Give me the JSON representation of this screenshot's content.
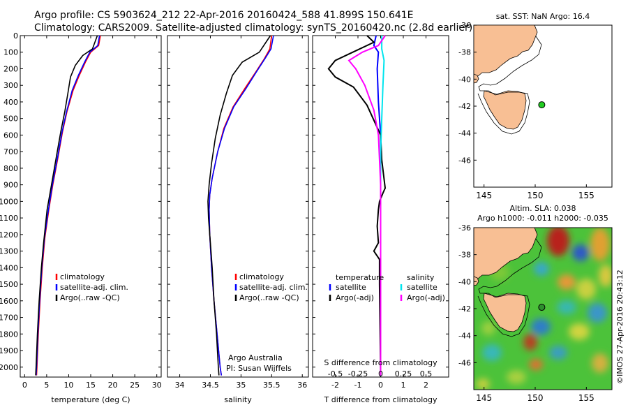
{
  "header": {
    "line1": "Argo profile: CS 5903624_212 22-Apr-2016 20160424_588 41.899S 150.641E",
    "line2": "Climatology: CARS2009. Satellite-adjusted climatology: synTS_20160420.nc (2.8d earlier)"
  },
  "colors": {
    "clim": "#ff0000",
    "sat": "#0000ff",
    "argo": "#000000",
    "sal_sat": "#00e5ee",
    "sal_argo": "#ff00ff",
    "land": "#f8bf94",
    "dot": "#22cc22"
  },
  "chart_data": [
    {
      "id": "temperature",
      "type": "line",
      "xlabel": "temperature (deg C)",
      "xlim": [
        -1,
        31
      ],
      "xticks": [
        0,
        5,
        10,
        15,
        20,
        25,
        30
      ],
      "ylim": [
        2060,
        0
      ],
      "yticks": [
        0,
        100,
        200,
        300,
        400,
        500,
        600,
        700,
        800,
        900,
        1000,
        1100,
        1200,
        1300,
        1400,
        1500,
        1600,
        1700,
        1800,
        1900,
        2000
      ],
      "legend": [
        "climatology",
        "satellite-adj. clim.",
        "Argo(..raw -QC)"
      ],
      "series": [
        {
          "name": "climatology",
          "color": "#ff0000",
          "points": [
            [
              17.2,
              0
            ],
            [
              16.8,
              60
            ],
            [
              15,
              100
            ],
            [
              13.8,
              160
            ],
            [
              12.4,
              240
            ],
            [
              11,
              330
            ],
            [
              9.6,
              460
            ],
            [
              8.6,
              580
            ],
            [
              7.6,
              730
            ],
            [
              6.4,
              900
            ],
            [
              5.5,
              1050
            ],
            [
              4.6,
              1220
            ],
            [
              4,
              1400
            ],
            [
              3.5,
              1600
            ],
            [
              3.1,
              1800
            ],
            [
              2.8,
              2000
            ],
            [
              2.7,
              2050
            ]
          ]
        },
        {
          "name": "satellite-adj. clim.",
          "color": "#0000ff",
          "points": [
            [
              17,
              0
            ],
            [
              16.6,
              60
            ],
            [
              14.8,
              100
            ],
            [
              13.6,
              160
            ],
            [
              12.2,
              240
            ],
            [
              10.8,
              330
            ],
            [
              9.5,
              460
            ],
            [
              8.5,
              580
            ],
            [
              7.5,
              730
            ],
            [
              6.3,
              900
            ],
            [
              5.4,
              1050
            ],
            [
              4.5,
              1220
            ],
            [
              3.9,
              1400
            ],
            [
              3.4,
              1600
            ],
            [
              3,
              1800
            ],
            [
              2.7,
              2000
            ],
            [
              2.6,
              2050
            ]
          ]
        },
        {
          "name": "Argo(..raw -QC)",
          "color": "#000000",
          "points": [
            [
              16.5,
              0
            ],
            [
              15.4,
              80
            ],
            [
              13.2,
              120
            ],
            [
              11.5,
              180
            ],
            [
              10.4,
              250
            ],
            [
              9.8,
              350
            ],
            [
              9.1,
              460
            ],
            [
              8.2,
              580
            ],
            [
              7.2,
              730
            ],
            [
              6.1,
              900
            ],
            [
              5.1,
              1050
            ],
            [
              4.3,
              1250
            ],
            [
              3.8,
              1400
            ],
            [
              3.3,
              1600
            ],
            [
              2.9,
              1800
            ],
            [
              2.6,
              2000
            ],
            [
              2.5,
              2050
            ]
          ]
        }
      ]
    },
    {
      "id": "salinity",
      "type": "line",
      "xlabel": "salinity",
      "xlim": [
        33.8,
        36.1
      ],
      "xticks": [
        34,
        34.5,
        35,
        35.5,
        36
      ],
      "ylim": [
        2060,
        0
      ],
      "legend": [
        "climatology",
        "satellite-adj. clim.",
        "Argo(..raw -QC)"
      ],
      "annotation": [
        "Argo Australia",
        "PI: Susan Wijffels"
      ],
      "series": [
        {
          "name": "climatology",
          "color": "#ff0000",
          "points": [
            [
              35.5,
              0
            ],
            [
              35.47,
              80
            ],
            [
              35.38,
              140
            ],
            [
              35.24,
              220
            ],
            [
              35.06,
              320
            ],
            [
              34.87,
              430
            ],
            [
              34.72,
              560
            ],
            [
              34.62,
              700
            ],
            [
              34.53,
              860
            ],
            [
              34.49,
              960
            ],
            [
              34.48,
              1050
            ],
            [
              34.49,
              1200
            ],
            [
              34.52,
              1400
            ],
            [
              34.56,
              1600
            ],
            [
              34.61,
              1800
            ],
            [
              34.66,
              2000
            ],
            [
              34.68,
              2050
            ]
          ]
        },
        {
          "name": "satellite-adj. clim.",
          "color": "#0000ff",
          "points": [
            [
              35.53,
              0
            ],
            [
              35.49,
              80
            ],
            [
              35.39,
              140
            ],
            [
              35.25,
              220
            ],
            [
              35.08,
              320
            ],
            [
              34.88,
              430
            ],
            [
              34.73,
              560
            ],
            [
              34.62,
              700
            ],
            [
              34.53,
              860
            ],
            [
              34.49,
              960
            ],
            [
              34.48,
              1050
            ],
            [
              34.49,
              1200
            ],
            [
              34.52,
              1400
            ],
            [
              34.56,
              1600
            ],
            [
              34.61,
              1800
            ],
            [
              34.66,
              2000
            ],
            [
              34.68,
              2050
            ]
          ]
        },
        {
          "name": "Argo(..raw -QC)",
          "color": "#000000",
          "points": [
            [
              35.48,
              0
            ],
            [
              35.3,
              100
            ],
            [
              35.02,
              160
            ],
            [
              34.86,
              240
            ],
            [
              34.76,
              350
            ],
            [
              34.66,
              480
            ],
            [
              34.58,
              620
            ],
            [
              34.52,
              770
            ],
            [
              34.48,
              900
            ],
            [
              34.46,
              1000
            ],
            [
              34.47,
              1100
            ],
            [
              34.5,
              1250
            ],
            [
              34.53,
              1400
            ],
            [
              34.56,
              1600
            ],
            [
              34.6,
              1800
            ],
            [
              34.63,
              2000
            ],
            [
              34.64,
              2050
            ]
          ]
        }
      ]
    },
    {
      "id": "difference",
      "type": "line",
      "xlabel": "T difference from climatology",
      "xlabel_top": "S difference from climatology",
      "xlim": [
        -3,
        3
      ],
      "xticks": [
        -2,
        -1,
        0,
        1,
        2
      ],
      "xticklabels": [
        "-2",
        "-1",
        "0",
        "1",
        "2"
      ],
      "xticks_top": [
        "-0.5",
        "-0.25",
        "0",
        "0.25",
        "0.5"
      ],
      "ylim": [
        2060,
        0
      ],
      "legend_left_title": "temperature",
      "legend_right_title": "salinity",
      "legend": [
        "satellite",
        "Argo(-adj)",
        "satellite",
        "Argo(-adj)"
      ],
      "series": [
        {
          "name": "satellite",
          "group": "temperature",
          "color": "#0000ff",
          "points": [
            [
              -0.2,
              0
            ],
            [
              -0.3,
              60
            ],
            [
              -0.1,
              100
            ],
            [
              -0.15,
              200
            ],
            [
              -0.1,
              400
            ],
            [
              0,
              600
            ],
            [
              0,
              2050
            ]
          ]
        },
        {
          "name": "Argo(-adj)",
          "group": "temperature",
          "color": "#000000",
          "points": [
            [
              -0.6,
              0
            ],
            [
              -0.3,
              40
            ],
            [
              -2,
              150
            ],
            [
              -2.3,
              200
            ],
            [
              -2.0,
              250
            ],
            [
              -1.2,
              310
            ],
            [
              -0.6,
              420
            ],
            [
              -0.2,
              540
            ],
            [
              0,
              600
            ],
            [
              0.05,
              750
            ],
            [
              0.2,
              920
            ],
            [
              0.1,
              950
            ],
            [
              -0.05,
              1000
            ],
            [
              -0.1,
              1050
            ],
            [
              -0.15,
              1150
            ],
            [
              -0.1,
              1250
            ],
            [
              -0.3,
              1300
            ],
            [
              -0.05,
              1350
            ],
            [
              -0.05,
              1500
            ],
            [
              0,
              2050
            ]
          ]
        },
        {
          "name": "satellite",
          "group": "salinity",
          "color": "#00e5ee",
          "points": [
            [
              0.05,
              0
            ],
            [
              0.05,
              80
            ],
            [
              0.15,
              150
            ],
            [
              0.1,
              300
            ],
            [
              0.05,
              500
            ],
            [
              0,
              700
            ],
            [
              0,
              2050
            ]
          ]
        },
        {
          "name": "Argo(-adj)",
          "group": "salinity",
          "color": "#ff00ff",
          "points": [
            [
              0.2,
              0
            ],
            [
              -0.1,
              60
            ],
            [
              -0.8,
              100
            ],
            [
              -1.4,
              150
            ],
            [
              -1.1,
              200
            ],
            [
              -0.7,
              300
            ],
            [
              -0.3,
              450
            ],
            [
              -0.1,
              600
            ],
            [
              0,
              900
            ],
            [
              0,
              2050
            ]
          ]
        }
      ]
    }
  ],
  "map_top": {
    "title": "sat. SST: NaN Argo: 16.4",
    "xlim": [
      144,
      157.5
    ],
    "ylim": [
      -48,
      -36
    ],
    "xticks": [
      145,
      150,
      155
    ],
    "yticks": [
      -36,
      -38,
      -40,
      -42,
      -44,
      -46
    ],
    "dot": {
      "lon": 150.64,
      "lat": -41.9
    }
  },
  "map_bottom": {
    "title": "Altim. SLA: 0.038",
    "subtitle": "Argo h1000: -0.011 h2000: -0.035",
    "xlim": [
      144,
      157.5
    ],
    "ylim": [
      -48,
      -36
    ],
    "xticks": [
      145,
      150,
      155
    ],
    "yticks": [
      -36,
      -38,
      -40,
      -42,
      -44,
      -46
    ],
    "dot": {
      "lon": 150.64,
      "lat": -41.9
    },
    "credit": "©IMOS 27-Apr-2016 20:43:12"
  }
}
